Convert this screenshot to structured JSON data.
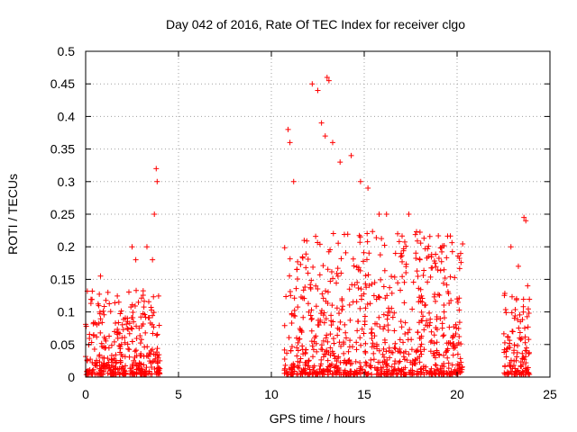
{
  "chart_data": {
    "type": "scatter",
    "title": "Day 042 of 2016, Rate Of TEC Index for receiver clgo",
    "xlabel": "GPS time / hours",
    "ylabel": "ROTI / TECUs",
    "xlim": [
      0,
      25
    ],
    "ylim": [
      0,
      0.5
    ],
    "x_ticks": [
      0,
      5,
      10,
      15,
      20,
      25
    ],
    "x_tick_labels": [
      "0",
      "5",
      "10",
      "15",
      "20",
      "25"
    ],
    "y_ticks": [
      0,
      0.05,
      0.1,
      0.15,
      0.2,
      0.25,
      0.3,
      0.35,
      0.4,
      0.45,
      0.5
    ],
    "y_tick_labels": [
      "0",
      "0.05",
      "0.1",
      "0.15",
      "0.2",
      "0.25",
      "0.3",
      "0.35",
      "0.4",
      "0.45",
      "0.5"
    ],
    "grid": true,
    "marker": "+",
    "series_color": "#ff0000",
    "series": [
      {
        "name": "ROTI",
        "segments": [
          {
            "x_range": [
              0.0,
              4.0
            ],
            "typical_max": 0.13,
            "peak_points": [
              [
                0.8,
                0.155
              ],
              [
                1.2,
                0.13
              ],
              [
                2.5,
                0.2
              ],
              [
                2.7,
                0.18
              ],
              [
                3.3,
                0.2
              ],
              [
                3.6,
                0.18
              ],
              [
                3.7,
                0.25
              ],
              [
                3.8,
                0.32
              ],
              [
                3.85,
                0.3
              ]
            ]
          },
          {
            "x_range": [
              10.7,
              20.3
            ],
            "typical_max": 0.22,
            "peak_points": [
              [
                10.9,
                0.38
              ],
              [
                11.0,
                0.36
              ],
              [
                11.2,
                0.3
              ],
              [
                12.2,
                0.45
              ],
              [
                12.5,
                0.44
              ],
              [
                12.7,
                0.39
              ],
              [
                12.9,
                0.37
              ],
              [
                13.0,
                0.46
              ],
              [
                13.1,
                0.455
              ],
              [
                13.3,
                0.36
              ],
              [
                13.7,
                0.33
              ],
              [
                14.3,
                0.34
              ],
              [
                14.8,
                0.3
              ],
              [
                15.2,
                0.29
              ],
              [
                15.8,
                0.25
              ],
              [
                16.2,
                0.25
              ],
              [
                16.8,
                0.22
              ],
              [
                17.4,
                0.25
              ],
              [
                18.0,
                0.18
              ],
              [
                19.3,
                0.1
              ],
              [
                20.0,
                0.12
              ]
            ]
          },
          {
            "x_range": [
              22.5,
              23.9
            ],
            "typical_max": 0.13,
            "peak_points": [
              [
                22.9,
                0.2
              ],
              [
                23.3,
                0.17
              ],
              [
                23.6,
                0.245
              ],
              [
                23.7,
                0.24
              ],
              [
                23.8,
                0.14
              ]
            ]
          }
        ]
      }
    ]
  }
}
